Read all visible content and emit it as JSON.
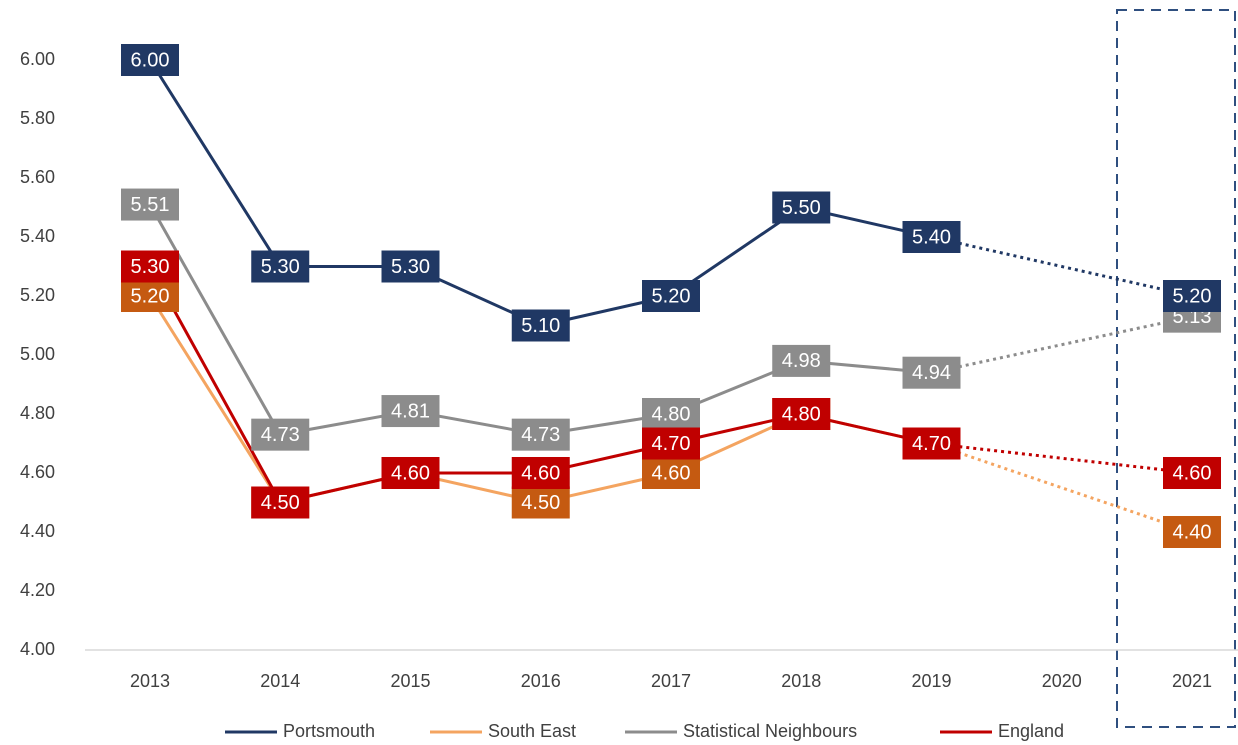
{
  "chart_data": {
    "type": "line",
    "categories": [
      "2013",
      "2014",
      "2015",
      "2016",
      "2017",
      "2018",
      "2019",
      "2020",
      "2021"
    ],
    "ylim": [
      4,
      6
    ],
    "yticks": [
      {
        "value": 4,
        "label": "4.00"
      },
      {
        "value": 4.2,
        "label": "4.20"
      },
      {
        "value": 4.4,
        "label": "4.40"
      },
      {
        "value": 4.6,
        "label": "4.60"
      },
      {
        "value": 4.8,
        "label": "4.80"
      },
      {
        "value": 5,
        "label": "5.00"
      },
      {
        "value": 5.2,
        "label": "5.20"
      },
      {
        "value": 5.4,
        "label": "5.40"
      },
      {
        "value": 5.6,
        "label": "5.60"
      },
      {
        "value": 5.8,
        "label": "5.80"
      },
      {
        "value": 6,
        "label": "6.00"
      }
    ],
    "series": [
      {
        "name": "Portsmouth",
        "color": "#203864",
        "label_color": "#203864",
        "values": [
          6,
          5.3,
          5.3,
          5.1,
          5.2,
          5.5,
          5.4,
          null,
          5.2
        ],
        "value_labels": [
          "6.00",
          "5.30",
          "5.30",
          "5.10",
          "5.20",
          "5.50",
          "5.40",
          null,
          "5.20"
        ]
      },
      {
        "name": "South East",
        "color": "#f4a460",
        "label_color": "#c55a11",
        "values": [
          5.2,
          4.5,
          4.6,
          4.5,
          4.6,
          4.8,
          4.7,
          null,
          4.4
        ],
        "value_labels": [
          "5.20",
          "4.50",
          "4.60",
          "4.50",
          "4.60",
          "4.80",
          "4.70",
          null,
          "4.40"
        ]
      },
      {
        "name": "Statistical Neighbours",
        "color": "#8c8c8c",
        "label_color": "#8c8c8c",
        "values": [
          5.51,
          4.73,
          4.81,
          4.73,
          4.8,
          4.98,
          4.94,
          null,
          5.13
        ],
        "value_labels": [
          "5.51",
          "4.73",
          "4.81",
          "4.73",
          "4.80",
          "4.98",
          "4.94",
          null,
          "5.13"
        ]
      },
      {
        "name": "England",
        "color": "#c00000",
        "label_color": "#c00000",
        "values": [
          5.3,
          4.5,
          4.6,
          4.6,
          4.7,
          4.8,
          4.7,
          null,
          4.6
        ],
        "value_labels": [
          "5.30",
          "4.50",
          "4.60",
          "4.60",
          "4.70",
          "4.80",
          "4.70",
          null,
          "4.60"
        ]
      }
    ]
  }
}
